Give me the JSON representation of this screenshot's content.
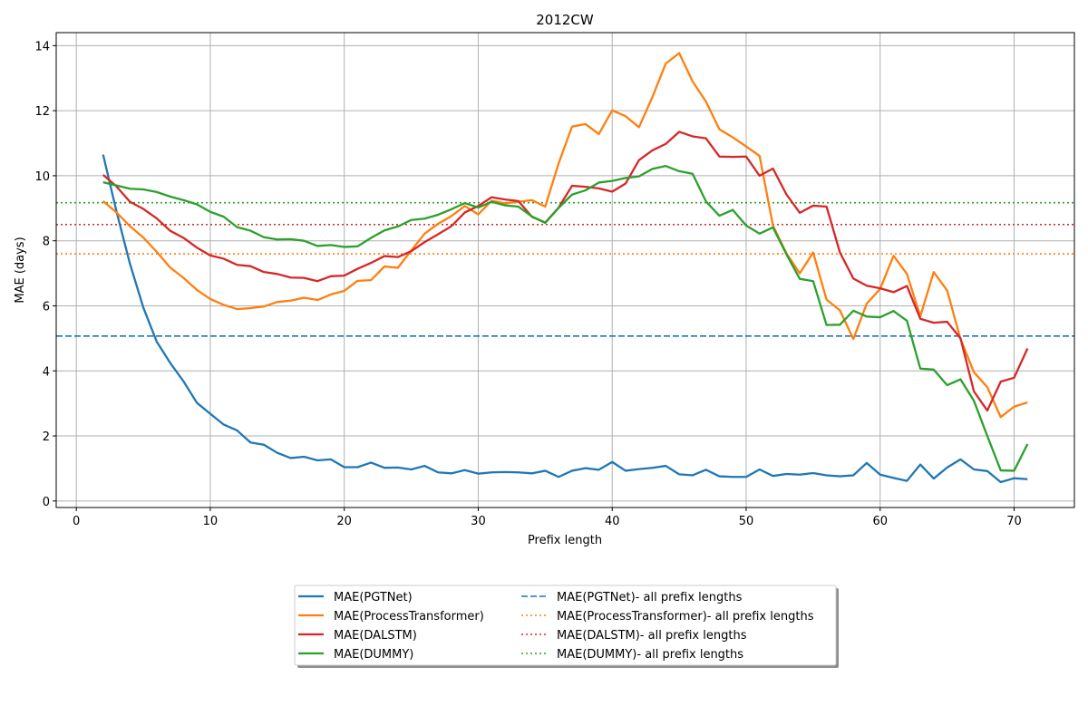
{
  "chart_data": {
    "type": "line",
    "title": "2012CW",
    "xlabel": "Prefix length",
    "ylabel": "MAE (days)",
    "xlim": [
      -1.5,
      74.5
    ],
    "ylim": [
      -0.2,
      14.4
    ],
    "xticks": [
      0,
      10,
      20,
      30,
      40,
      50,
      60,
      70
    ],
    "yticks": [
      0,
      2,
      4,
      6,
      8,
      10,
      12,
      14
    ],
    "grid": true,
    "legend_position": "bottom-center",
    "x": [
      2,
      3,
      4,
      5,
      6,
      7,
      8,
      9,
      10,
      11,
      12,
      13,
      14,
      15,
      16,
      17,
      18,
      19,
      20,
      21,
      22,
      23,
      24,
      25,
      26,
      27,
      28,
      29,
      30,
      31,
      32,
      33,
      34,
      35,
      36,
      37,
      38,
      39,
      40,
      41,
      42,
      43,
      44,
      45,
      46,
      47,
      48,
      49,
      50,
      51,
      52,
      53,
      54,
      55,
      56,
      57,
      58,
      59,
      60,
      61,
      62,
      63,
      64,
      65,
      66,
      67,
      68,
      69,
      70,
      71
    ],
    "series": [
      {
        "name": "MAE(PGTNet)",
        "color": "#1f77b4",
        "style": "solid",
        "values": [
          10.65,
          8.9,
          7.3,
          5.95,
          4.9,
          4.25,
          3.68,
          3.02,
          2.68,
          2.35,
          2.17,
          1.8,
          1.73,
          1.48,
          1.32,
          1.36,
          1.25,
          1.28,
          1.04,
          1.04,
          1.18,
          1.02,
          1.03,
          0.97,
          1.08,
          0.88,
          0.85,
          0.95,
          0.84,
          0.88,
          0.89,
          0.88,
          0.85,
          0.93,
          0.74,
          0.93,
          1.01,
          0.96,
          1.2,
          0.93,
          0.98,
          1.02,
          1.08,
          0.82,
          0.79,
          0.96,
          0.76,
          0.74,
          0.74,
          0.97,
          0.77,
          0.83,
          0.81,
          0.86,
          0.79,
          0.76,
          0.79,
          1.17,
          0.81,
          0.71,
          0.62,
          1.12,
          0.69,
          1.03,
          1.28,
          0.97,
          0.92,
          0.58,
          0.7,
          0.67
        ]
      },
      {
        "name": "MAE(ProcessTransformer)",
        "color": "#ff7f0e",
        "style": "solid",
        "values": [
          9.22,
          8.87,
          8.45,
          8.1,
          7.66,
          7.18,
          6.86,
          6.49,
          6.21,
          6.03,
          5.9,
          5.93,
          5.98,
          6.12,
          6.16,
          6.25,
          6.18,
          6.35,
          6.46,
          6.77,
          6.79,
          7.21,
          7.17,
          7.7,
          8.22,
          8.52,
          8.76,
          9.07,
          8.81,
          9.23,
          9.15,
          9.2,
          9.25,
          9.05,
          10.38,
          11.51,
          11.59,
          11.28,
          12.01,
          11.83,
          11.49,
          12.42,
          13.45,
          13.77,
          12.9,
          12.28,
          11.43,
          11.18,
          10.9,
          10.61,
          8.47,
          7.62,
          7.0,
          7.64,
          6.19,
          5.86,
          4.98,
          6.07,
          6.52,
          7.54,
          6.98,
          5.68,
          7.04,
          6.47,
          4.98,
          3.96,
          3.5,
          2.58,
          2.9,
          3.03
        ]
      },
      {
        "name": "MAE(DALSTM)",
        "color": "#d62728",
        "style": "solid",
        "values": [
          10.03,
          9.67,
          9.2,
          8.98,
          8.69,
          8.31,
          8.09,
          7.79,
          7.55,
          7.45,
          7.26,
          7.22,
          7.04,
          6.98,
          6.87,
          6.86,
          6.76,
          6.91,
          6.93,
          7.14,
          7.32,
          7.53,
          7.5,
          7.68,
          7.96,
          8.2,
          8.45,
          8.87,
          9.07,
          9.34,
          9.27,
          9.22,
          8.74,
          8.56,
          9.02,
          9.69,
          9.66,
          9.61,
          9.51,
          9.76,
          10.48,
          10.78,
          10.98,
          11.35,
          11.21,
          11.15,
          10.59,
          10.58,
          10.59,
          10.0,
          10.22,
          9.43,
          8.86,
          9.08,
          9.05,
          7.64,
          6.84,
          6.62,
          6.54,
          6.42,
          6.61,
          5.6,
          5.48,
          5.51,
          5.0,
          3.37,
          2.78,
          3.67,
          3.79,
          4.69
        ]
      },
      {
        "name": "MAE(DUMMY)",
        "color": "#2ca02c",
        "style": "solid",
        "values": [
          9.8,
          9.7,
          9.6,
          9.58,
          9.5,
          9.36,
          9.25,
          9.12,
          8.89,
          8.74,
          8.42,
          8.31,
          8.11,
          8.04,
          8.05,
          8.0,
          7.84,
          7.87,
          7.81,
          7.83,
          8.09,
          8.32,
          8.44,
          8.64,
          8.68,
          8.8,
          8.97,
          9.16,
          9.02,
          9.2,
          9.09,
          9.05,
          8.75,
          8.55,
          9.01,
          9.42,
          9.55,
          9.79,
          9.84,
          9.93,
          9.98,
          10.21,
          10.3,
          10.14,
          10.06,
          9.21,
          8.77,
          8.95,
          8.47,
          8.22,
          8.41,
          7.59,
          6.83,
          6.76,
          5.41,
          5.42,
          5.85,
          5.67,
          5.65,
          5.84,
          5.54,
          4.07,
          4.04,
          3.56,
          3.74,
          3.08,
          2.0,
          0.94,
          0.93,
          1.75
        ]
      },
      {
        "name": "MAE(PGTNet)- all prefix lengths",
        "color": "#1f77b4",
        "style": "dashed",
        "constant": 5.07
      },
      {
        "name": "MAE(ProcessTransformer)- all prefix lengths",
        "color": "#ff7f0e",
        "style": "dotted",
        "constant": 7.6
      },
      {
        "name": "MAE(DALSTM)- all prefix lengths",
        "color": "#d62728",
        "style": "dotted",
        "constant": 8.5
      },
      {
        "name": "MAE(DUMMY)- all prefix lengths",
        "color": "#2ca02c",
        "style": "dotted",
        "constant": 9.17
      }
    ]
  }
}
